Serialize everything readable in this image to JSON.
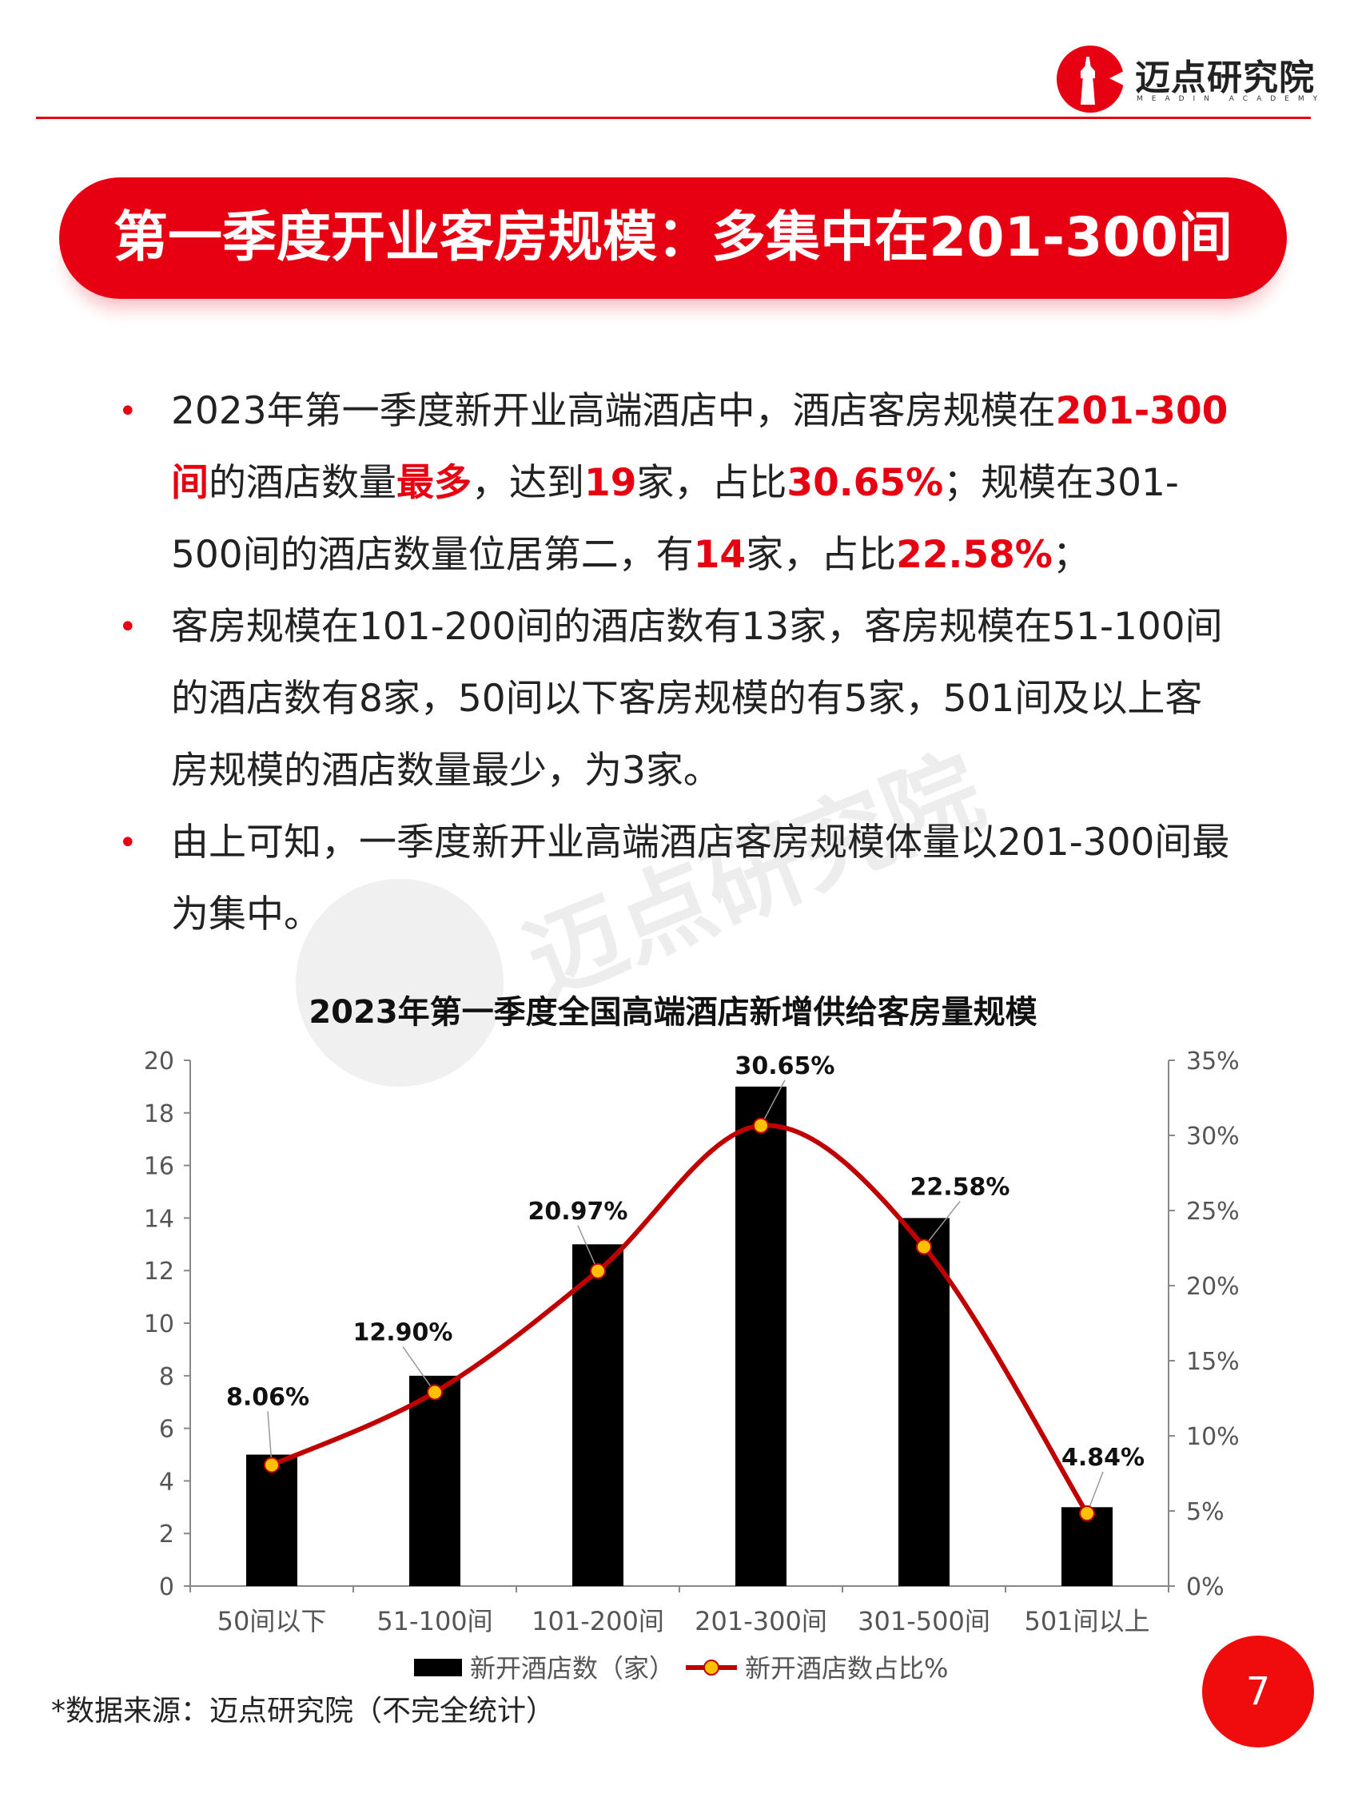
{
  "header": {
    "logo_cn": "迈点研究院",
    "logo_en": "MEADIN ACADEMY"
  },
  "banner": {
    "title": "第一季度开业客房规模：多集中在201-300间"
  },
  "bullets": [
    {
      "segments": [
        {
          "text": "2023年第一季度新开业高端酒店中，酒店客房规模在",
          "hl": false
        },
        {
          "text": "201-300间",
          "hl": true
        },
        {
          "text": "的酒店数量",
          "hl": false
        },
        {
          "text": "最多",
          "hl": true
        },
        {
          "text": "，达到",
          "hl": false
        },
        {
          "text": "19",
          "hl": true
        },
        {
          "text": "家，占比",
          "hl": false
        },
        {
          "text": "30.65%",
          "hl": true
        },
        {
          "text": "；规模在301-500间的酒店数量位居第二，有",
          "hl": false
        },
        {
          "text": "14",
          "hl": true
        },
        {
          "text": "家，占比",
          "hl": false
        },
        {
          "text": "22.58%",
          "hl": true
        },
        {
          "text": "；",
          "hl": false
        }
      ]
    },
    {
      "segments": [
        {
          "text": "客房规模在101-200间的酒店数有13家，客房规模在51-100间的酒店数有8家，50间以下客房规模的有5家，501间及以上客房规模的酒店数量最少，为3家。",
          "hl": false
        }
      ]
    },
    {
      "segments": [
        {
          "text": "由上可知，一季度新开业高端酒店客房规模体量以201-300间最为集中。",
          "hl": false
        }
      ]
    }
  ],
  "watermark": "迈点研究院",
  "chart_data": {
    "type": "bar",
    "title": "2023年第一季度全国高端酒店新增供给客房量规模",
    "categories": [
      "50间以下",
      "51-100间",
      "101-200间",
      "201-300间",
      "301-500间",
      "501间以上"
    ],
    "series": [
      {
        "name": "新开酒店数（家）",
        "type": "bar",
        "axis": "left",
        "values": [
          5,
          8,
          13,
          19,
          14,
          3
        ],
        "color": "#000000"
      },
      {
        "name": "新开酒店数占比%",
        "type": "line",
        "axis": "right",
        "values": [
          8.06,
          12.9,
          20.97,
          30.65,
          22.58,
          4.84
        ],
        "labels": [
          "8.06%",
          "12.90%",
          "20.97%",
          "30.65%",
          "22.58%",
          "4.84%"
        ],
        "color": "#c00000",
        "marker_color": "#ffc000"
      }
    ],
    "ylim": [
      0,
      20
    ],
    "yticks": [
      "0",
      "2",
      "4",
      "6",
      "8",
      "10",
      "12",
      "14",
      "16",
      "18",
      "20"
    ],
    "y2lim": [
      0,
      35
    ],
    "y2ticks": [
      "0%",
      "5%",
      "10%",
      "15%",
      "20%",
      "25%",
      "30%",
      "35%"
    ],
    "legend": "bottom",
    "grid": false
  },
  "footer": {
    "source": "*数据来源：迈点研究院（不完全统计）",
    "page": "7"
  }
}
